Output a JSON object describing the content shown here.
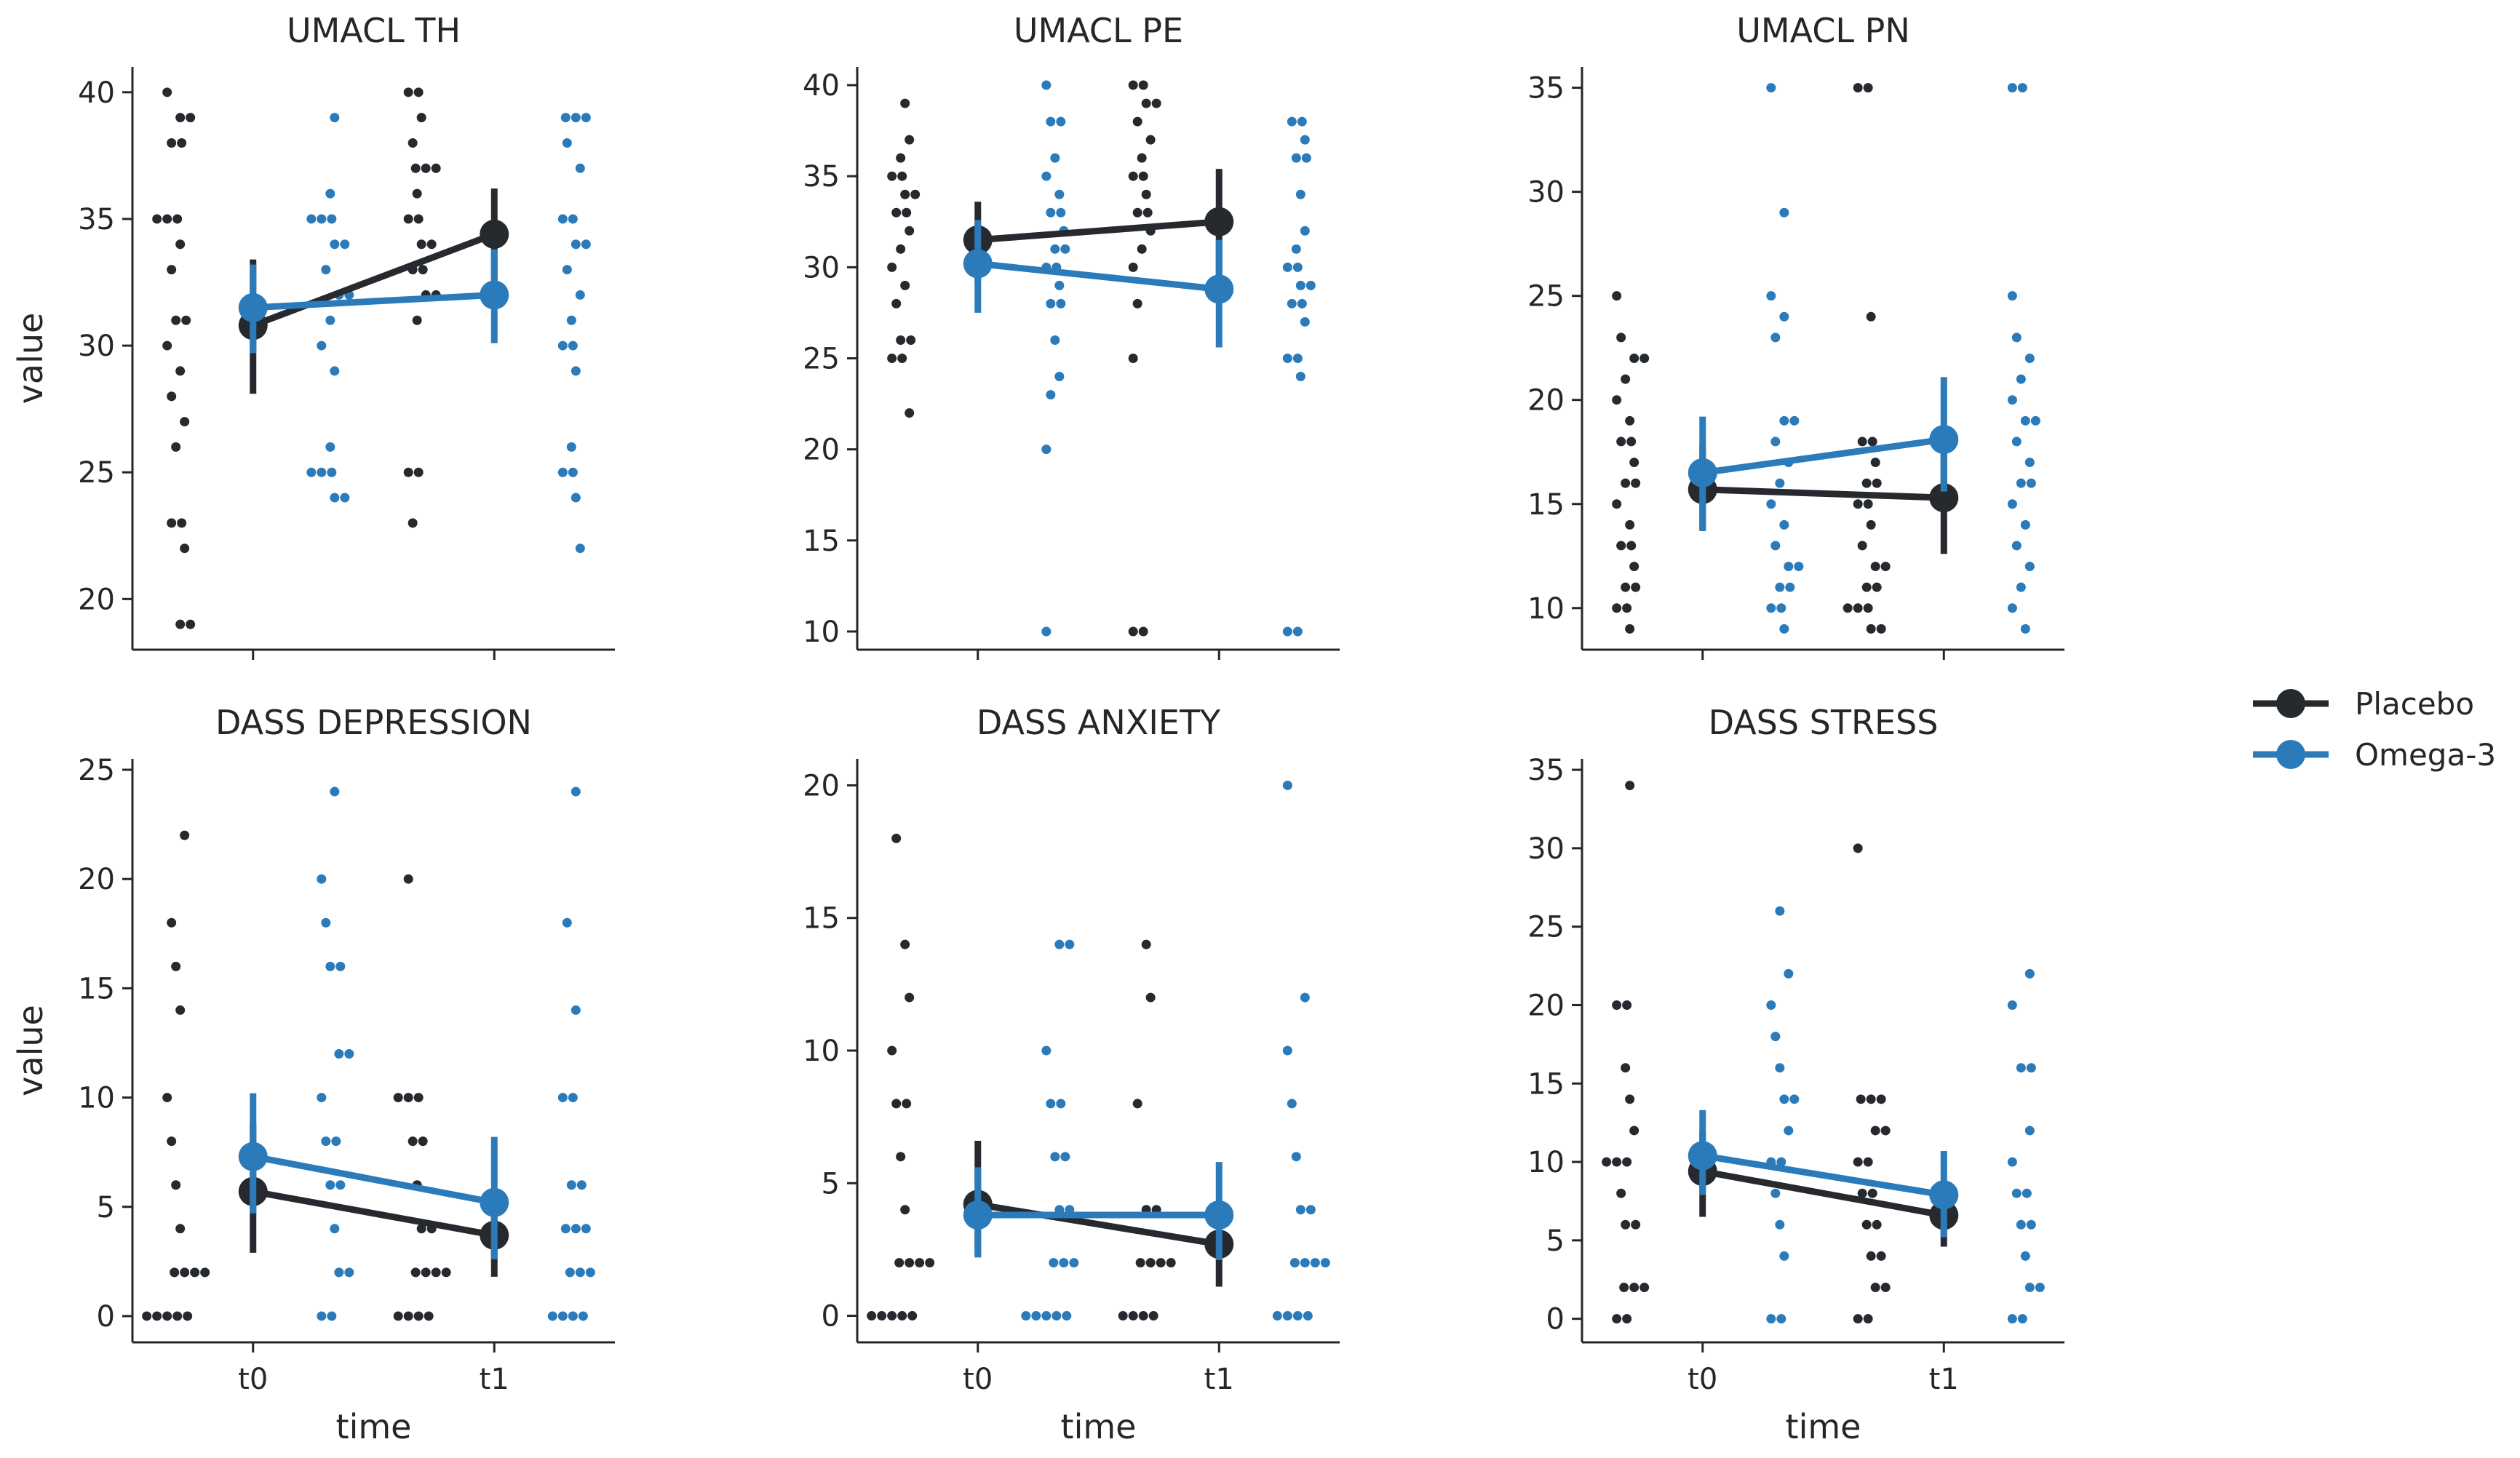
{
  "figure": {
    "x_label": "time",
    "y_label": "value",
    "categories": [
      "t0",
      "t1"
    ]
  },
  "legend": [
    {
      "name": "Placebo",
      "color": "#262a2e"
    },
    {
      "name": "Omega-3",
      "color": "#2b7bba"
    }
  ],
  "chart_data": [
    {
      "type": "scatter",
      "title": "UMACL TH",
      "ylim": [
        18,
        41
      ],
      "yticks": [
        20,
        25,
        30,
        35,
        40
      ],
      "x": [
        "t0",
        "t1"
      ],
      "series": [
        {
          "name": "Placebo",
          "means": [
            30.8,
            34.4
          ],
          "ci": [
            [
              28.1,
              33.4
            ],
            [
              32.5,
              36.2
            ]
          ],
          "points": [
            [
              40,
              39,
              39,
              38,
              38,
              35,
              35,
              35,
              34,
              33,
              31,
              31,
              30,
              29,
              28,
              27,
              26,
              23,
              23,
              22,
              19,
              19
            ],
            [
              40,
              40,
              39,
              38,
              37,
              37,
              37,
              36,
              35,
              35,
              34,
              34,
              33,
              33,
              32,
              32,
              31,
              25,
              25,
              23
            ]
          ]
        },
        {
          "name": "Omega-3",
          "means": [
            31.5,
            32.0
          ],
          "ci": [
            [
              29.7,
              33.2
            ],
            [
              30.1,
              33.8
            ]
          ],
          "points": [
            [
              39,
              36,
              35,
              35,
              35,
              34,
              34,
              33,
              32,
              32,
              31,
              30,
              29,
              26,
              25,
              25,
              25,
              24,
              24
            ],
            [
              39,
              39,
              39,
              38,
              37,
              35,
              35,
              34,
              34,
              33,
              32,
              31,
              30,
              30,
              29,
              26,
              25,
              25,
              24,
              22
            ]
          ]
        }
      ]
    },
    {
      "type": "scatter",
      "title": "UMACL PE",
      "ylim": [
        9,
        41
      ],
      "yticks": [
        10,
        15,
        20,
        25,
        30,
        35,
        40
      ],
      "x": [
        "t0",
        "t1"
      ],
      "series": [
        {
          "name": "Placebo",
          "means": [
            31.5,
            32.5
          ],
          "ci": [
            [
              29.2,
              33.6
            ],
            [
              28.5,
              35.4
            ]
          ],
          "points": [
            [
              39,
              37,
              36,
              35,
              35,
              34,
              34,
              33,
              33,
              32,
              31,
              30,
              29,
              28,
              26,
              26,
              25,
              25,
              22
            ],
            [
              40,
              40,
              39,
              39,
              38,
              37,
              36,
              35,
              35,
              34,
              33,
              33,
              32,
              31,
              30,
              28,
              25,
              10,
              10
            ]
          ]
        },
        {
          "name": "Omega-3",
          "means": [
            30.2,
            28.8
          ],
          "ci": [
            [
              27.5,
              32.6
            ],
            [
              25.6,
              31.5
            ]
          ],
          "points": [
            [
              40,
              38,
              38,
              36,
              35,
              34,
              33,
              33,
              32,
              31,
              31,
              30,
              30,
              29,
              28,
              28,
              26,
              24,
              23,
              20,
              10
            ],
            [
              38,
              38,
              37,
              36,
              36,
              34,
              32,
              31,
              30,
              30,
              29,
              29,
              28,
              28,
              27,
              25,
              25,
              24,
              10,
              10
            ]
          ]
        }
      ]
    },
    {
      "type": "scatter",
      "title": "UMACL PN",
      "ylim": [
        8,
        36
      ],
      "yticks": [
        10,
        15,
        20,
        25,
        30,
        35
      ],
      "x": [
        "t0",
        "t1"
      ],
      "series": [
        {
          "name": "Placebo",
          "means": [
            15.7,
            15.3
          ],
          "ci": [
            [
              13.8,
              17.8
            ],
            [
              12.6,
              18.0
            ]
          ],
          "points": [
            [
              25,
              23,
              22,
              22,
              21,
              20,
              19,
              18,
              18,
              17,
              16,
              16,
              15,
              14,
              13,
              13,
              12,
              11,
              11,
              10,
              10,
              9
            ],
            [
              35,
              35,
              24,
              18,
              18,
              17,
              16,
              16,
              15,
              15,
              14,
              13,
              12,
              12,
              11,
              11,
              10,
              10,
              10,
              9,
              9
            ]
          ]
        },
        {
          "name": "Omega-3",
          "means": [
            16.5,
            18.1
          ],
          "ci": [
            [
              13.7,
              19.2
            ],
            [
              15.6,
              21.1
            ]
          ],
          "points": [
            [
              35,
              29,
              25,
              24,
              23,
              19,
              19,
              18,
              17,
              16,
              15,
              14,
              13,
              12,
              12,
              11,
              11,
              10,
              10,
              9
            ],
            [
              35,
              35,
              25,
              23,
              22,
              21,
              20,
              19,
              19,
              18,
              17,
              16,
              16,
              15,
              14,
              13,
              12,
              11,
              10,
              9
            ]
          ]
        }
      ]
    },
    {
      "type": "scatter",
      "title": "DASS DEPRESSION",
      "ylim": [
        -1.2,
        25.5
      ],
      "yticks": [
        0,
        5,
        10,
        15,
        20,
        25
      ],
      "x": [
        "t0",
        "t1"
      ],
      "series": [
        {
          "name": "Placebo",
          "means": [
            5.7,
            3.7
          ],
          "ci": [
            [
              2.9,
              8.8
            ],
            [
              1.8,
              5.8
            ]
          ],
          "points": [
            [
              22,
              18,
              16,
              14,
              10,
              8,
              6,
              4,
              2,
              2,
              2,
              2,
              0,
              0,
              0,
              0,
              0
            ],
            [
              20,
              10,
              10,
              10,
              8,
              8,
              6,
              4,
              4,
              2,
              2,
              2,
              2,
              0,
              0,
              0,
              0
            ]
          ]
        },
        {
          "name": "Omega-3",
          "means": [
            7.3,
            5.2
          ],
          "ci": [
            [
              4.7,
              10.2
            ],
            [
              2.6,
              8.2
            ]
          ],
          "points": [
            [
              24,
              20,
              18,
              16,
              16,
              12,
              12,
              10,
              8,
              8,
              6,
              6,
              4,
              2,
              2,
              0,
              0
            ],
            [
              24,
              18,
              14,
              10,
              10,
              6,
              6,
              4,
              4,
              4,
              2,
              2,
              2,
              0,
              0,
              0,
              0
            ]
          ]
        }
      ]
    },
    {
      "type": "scatter",
      "title": "DASS ANXIETY",
      "ylim": [
        -1,
        21
      ],
      "yticks": [
        0,
        5,
        10,
        15,
        20
      ],
      "x": [
        "t0",
        "t1"
      ],
      "series": [
        {
          "name": "Placebo",
          "means": [
            4.2,
            2.7
          ],
          "ci": [
            [
              2.3,
              6.6
            ],
            [
              1.1,
              4.3
            ]
          ],
          "points": [
            [
              18,
              14,
              12,
              10,
              8,
              8,
              6,
              4,
              2,
              2,
              2,
              2,
              0,
              0,
              0,
              0,
              0
            ],
            [
              14,
              12,
              8,
              4,
              4,
              2,
              2,
              2,
              2,
              0,
              0,
              0,
              0
            ]
          ]
        },
        {
          "name": "Omega-3",
          "means": [
            3.8,
            3.8
          ],
          "ci": [
            [
              2.2,
              5.6
            ],
            [
              2.1,
              5.8
            ]
          ],
          "points": [
            [
              14,
              14,
              10,
              8,
              8,
              6,
              6,
              4,
              4,
              2,
              2,
              2,
              0,
              0,
              0,
              0,
              0
            ],
            [
              20,
              12,
              10,
              8,
              6,
              4,
              4,
              2,
              2,
              2,
              2,
              0,
              0,
              0,
              0
            ]
          ]
        }
      ]
    },
    {
      "type": "scatter",
      "title": "DASS STRESS",
      "ylim": [
        -1.5,
        35.7
      ],
      "yticks": [
        0,
        5,
        10,
        15,
        20,
        25,
        30,
        35
      ],
      "x": [
        "t0",
        "t1"
      ],
      "series": [
        {
          "name": "Placebo",
          "means": [
            9.4,
            6.6
          ],
          "ci": [
            [
              6.5,
              12.0
            ],
            [
              4.6,
              8.7
            ]
          ],
          "points": [
            [
              34,
              20,
              20,
              16,
              14,
              12,
              10,
              10,
              10,
              8,
              6,
              6,
              2,
              2,
              2,
              0,
              0
            ],
            [
              30,
              14,
              14,
              14,
              12,
              12,
              10,
              10,
              8,
              8,
              6,
              6,
              4,
              4,
              2,
              2,
              0,
              0
            ]
          ]
        },
        {
          "name": "Omega-3",
          "means": [
            10.4,
            7.9
          ],
          "ci": [
            [
              7.9,
              13.3
            ],
            [
              5.2,
              10.7
            ]
          ],
          "points": [
            [
              26,
              22,
              20,
              18,
              16,
              14,
              14,
              12,
              10,
              10,
              8,
              6,
              4,
              0,
              0
            ],
            [
              22,
              20,
              16,
              16,
              12,
              10,
              8,
              8,
              6,
              6,
              4,
              2,
              2,
              0,
              0
            ]
          ]
        }
      ]
    }
  ]
}
